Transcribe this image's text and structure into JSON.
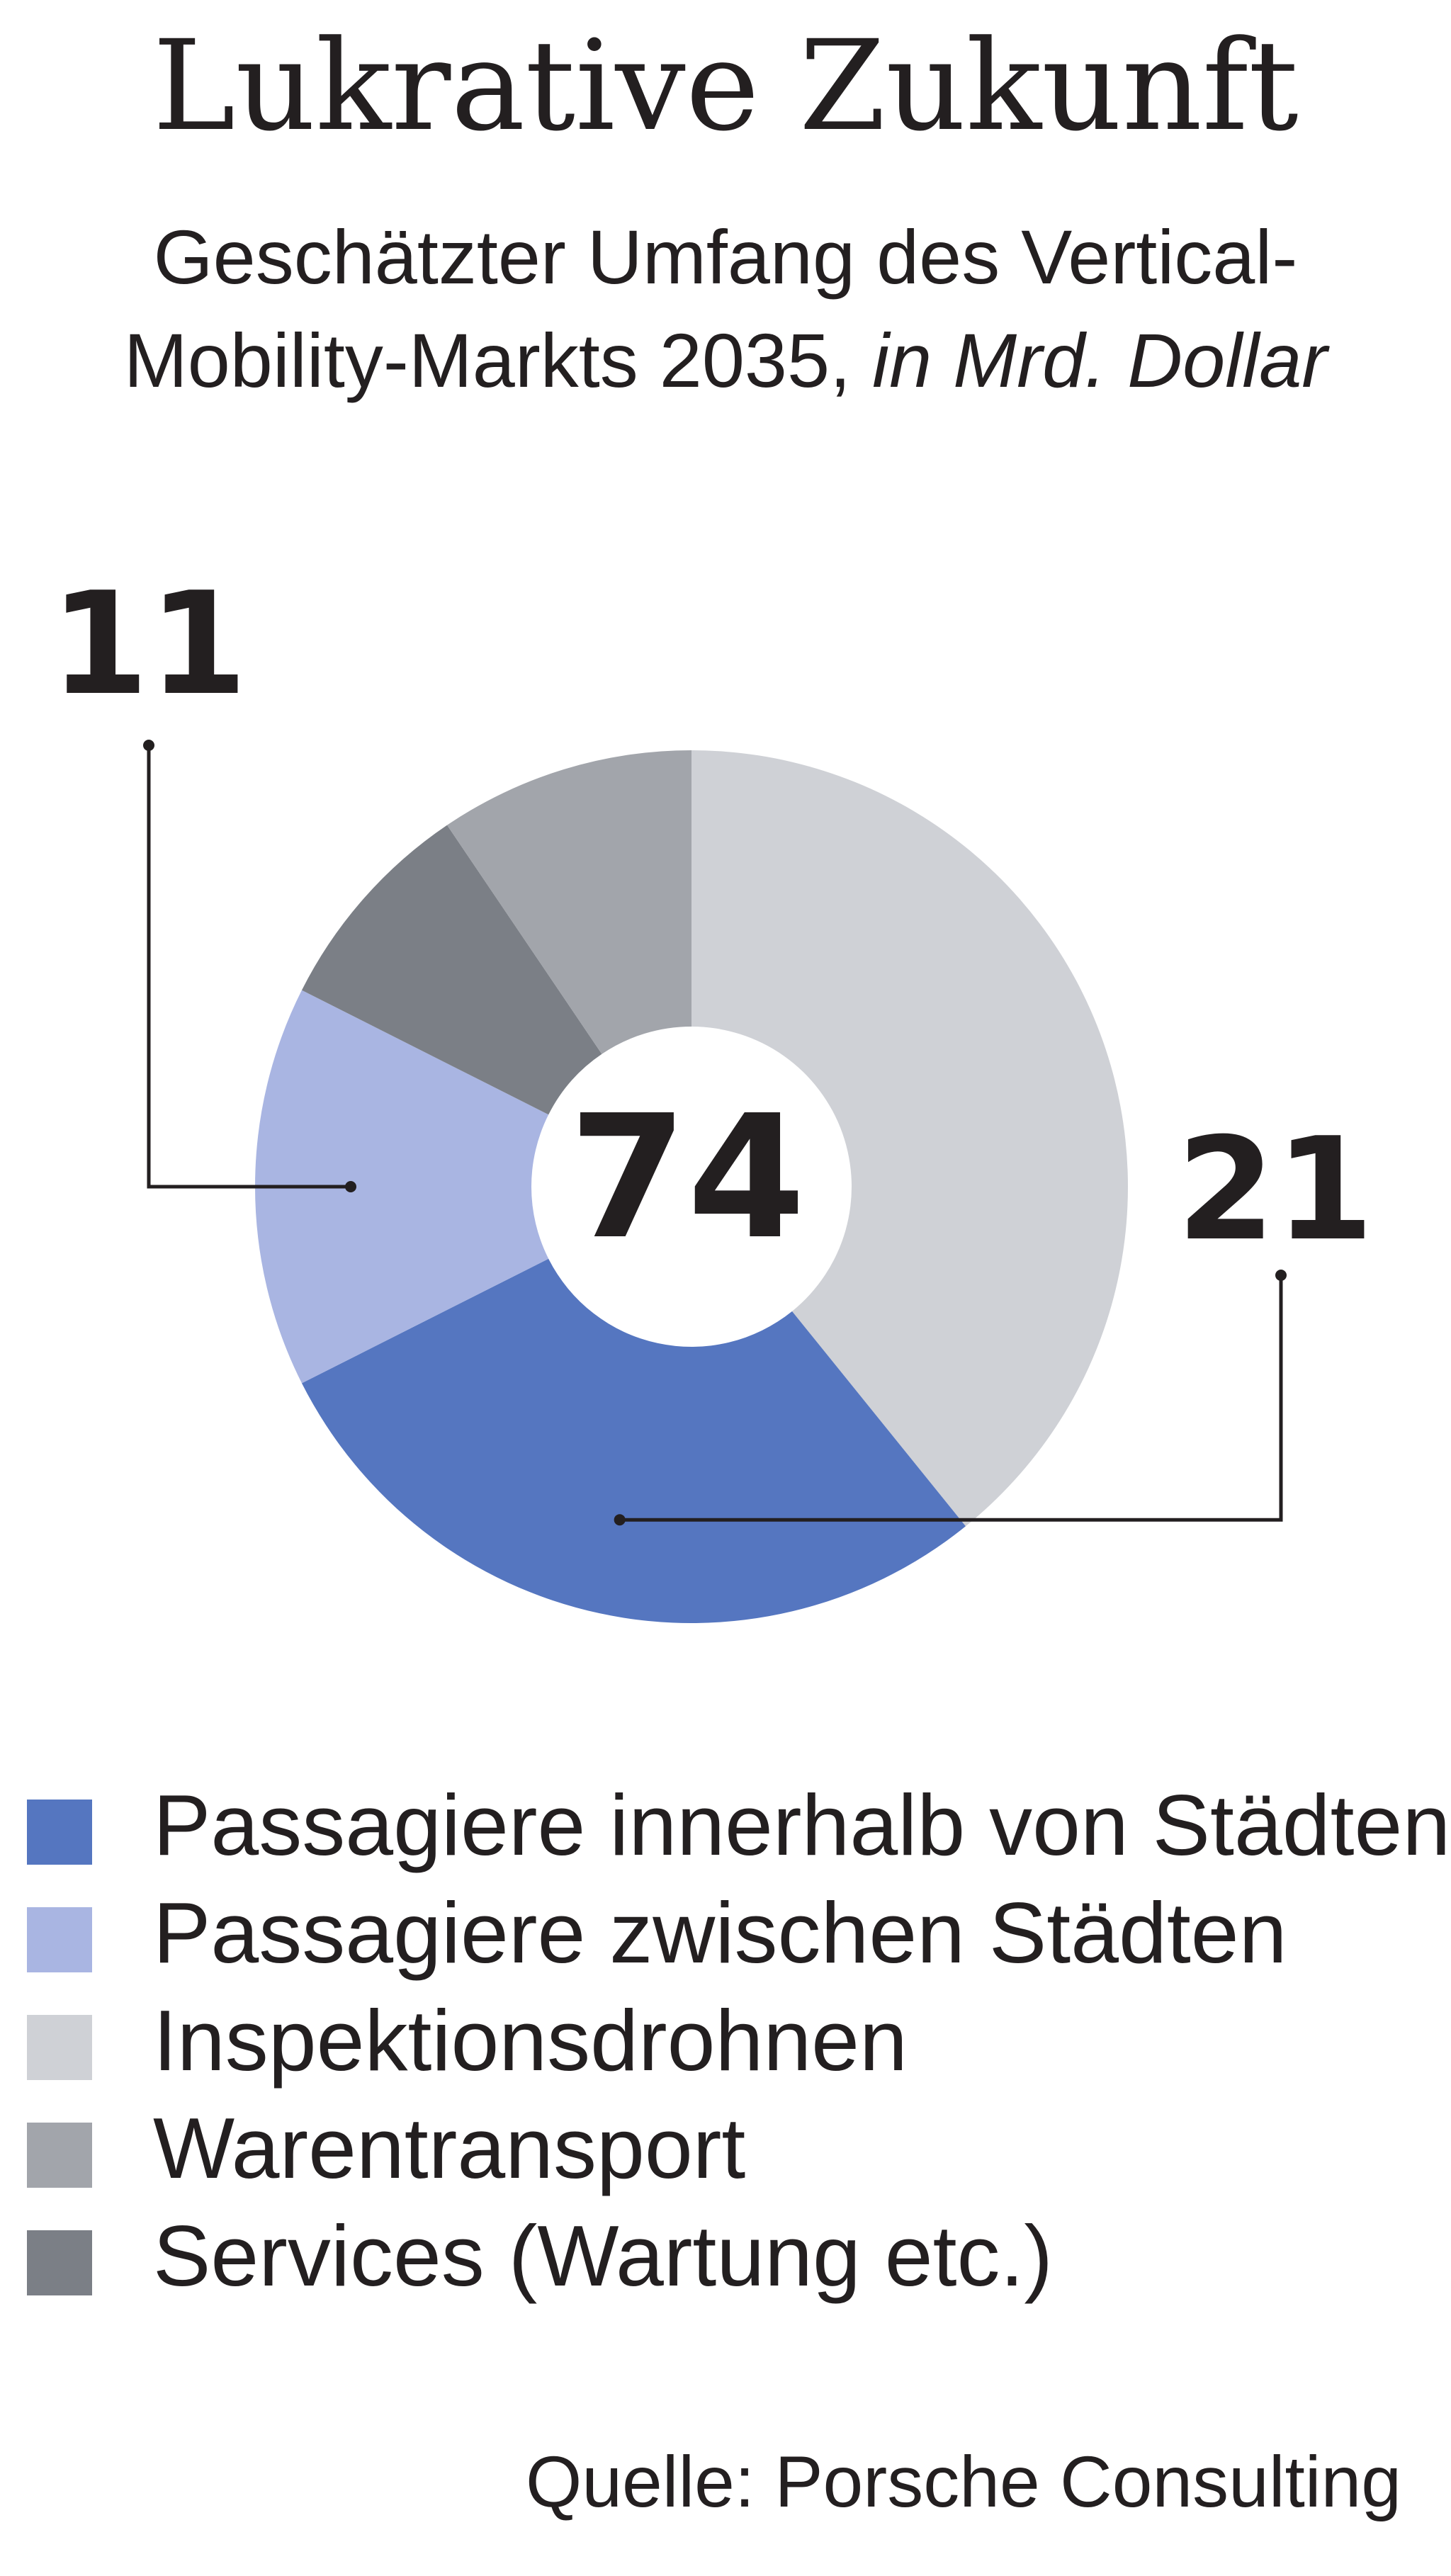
{
  "header": {
    "title": "Lukrative Zukunft",
    "subtitle_main": "Geschätzter Umfang des Vertical-Mobility-Markts 2035,",
    "subtitle_unit": "in Mrd. Dollar"
  },
  "chart_data": {
    "type": "pie",
    "variant": "donut",
    "title": "Lukrative Zukunft",
    "subtitle": "Geschätzter Umfang des Vertical-Mobility-Markts 2035, in Mrd. Dollar",
    "total_label": "74",
    "total": 74,
    "series": [
      {
        "name": "Inspektionsdrohnen",
        "value": 29,
        "color": "#cfd1d6"
      },
      {
        "name": "Passagiere innerhalb von Städten",
        "value": 21,
        "color": "#5576c0"
      },
      {
        "name": "Passagiere zwischen Städten",
        "value": 11,
        "color": "#a9b5e2"
      },
      {
        "name": "Services (Wartung etc.)",
        "value": 6,
        "color": "#7b7f86"
      },
      {
        "name": "Warentransport",
        "value": 7,
        "color": "#a2a5ab"
      }
    ],
    "data_labels": [
      {
        "series": "Passagiere zwischen Städten",
        "text": "11"
      },
      {
        "series": "Passagiere innerhalb von Städten",
        "text": "21"
      }
    ],
    "legend": {
      "placement": "bottom",
      "items": [
        {
          "label": "Passagiere innerhalb von Städten",
          "color": "#5576c0"
        },
        {
          "label": "Passagiere zwischen Städten",
          "color": "#a9b5e2"
        },
        {
          "label": "Inspektionsdrohnen",
          "color": "#cfd1d6"
        },
        {
          "label": "Warentransport",
          "color": "#a2a5ab"
        },
        {
          "label": "Services (Wartung etc.)",
          "color": "#7b7f86"
        }
      ]
    }
  },
  "footer": {
    "source": "Quelle: Porsche Consulting"
  }
}
